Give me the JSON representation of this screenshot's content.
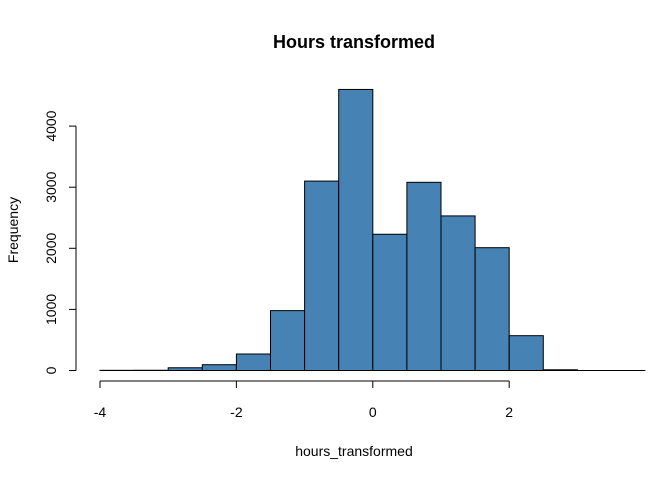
{
  "chart_data": {
    "type": "bar",
    "title": "Hours transformed",
    "xlabel": "hours_transformed",
    "ylabel": "Frequency",
    "bar_color": "#4682b4",
    "bins": [
      {
        "x0": -4.0,
        "x1": -3.5,
        "count": 3
      },
      {
        "x0": -3.5,
        "x1": -3.0,
        "count": 4
      },
      {
        "x0": -3.0,
        "x1": -2.5,
        "count": 45
      },
      {
        "x0": -2.5,
        "x1": -2.0,
        "count": 95
      },
      {
        "x0": -2.0,
        "x1": -1.5,
        "count": 270
      },
      {
        "x0": -1.5,
        "x1": -1.0,
        "count": 980
      },
      {
        "x0": -1.0,
        "x1": -0.5,
        "count": 3100
      },
      {
        "x0": -0.5,
        "x1": 0.0,
        "count": 4600
      },
      {
        "x0": 0.0,
        "x1": 0.5,
        "count": 2230
      },
      {
        "x0": 0.5,
        "x1": 1.0,
        "count": 3080
      },
      {
        "x0": 1.0,
        "x1": 1.5,
        "count": 2530
      },
      {
        "x0": 1.5,
        "x1": 2.0,
        "count": 2010
      },
      {
        "x0": 2.0,
        "x1": 2.5,
        "count": 570
      },
      {
        "x0": 2.5,
        "x1": 3.0,
        "count": 12
      }
    ],
    "xlim": [
      -4,
      3
    ],
    "ylim": [
      0,
      4600
    ],
    "x_ticks": [
      -4,
      -2,
      0,
      2
    ],
    "x_tick_labels": [
      "-4",
      "-2",
      "0",
      "2"
    ],
    "y_ticks": [
      0,
      1000,
      2000,
      3000,
      4000
    ],
    "y_tick_labels": [
      "0",
      "1000",
      "2000",
      "3000",
      "4000"
    ],
    "grid": false
  }
}
